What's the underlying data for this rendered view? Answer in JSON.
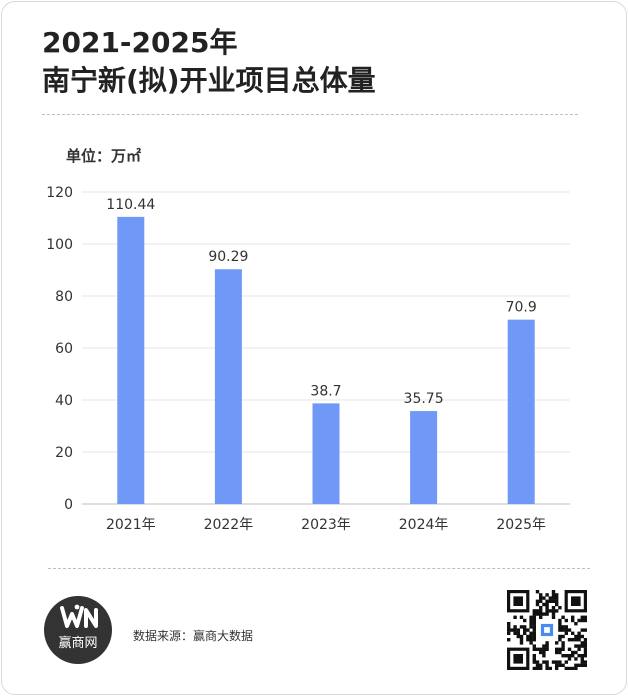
{
  "title": {
    "line1": "2021-2025年",
    "line2": "南宁新(拟)开业项目总体量"
  },
  "unit_label": "单位：万㎡",
  "chart_data": {
    "type": "bar",
    "categories": [
      "2021年",
      "2022年",
      "2023年",
      "2024年",
      "2025年"
    ],
    "series": [
      {
        "values": [
          110.44,
          90.29,
          38.7,
          35.75,
          70.9
        ]
      }
    ],
    "value_labels": [
      "110.44",
      "90.29",
      "38.7",
      "35.75",
      "70.9"
    ],
    "y_ticks": [
      "0",
      "20",
      "40",
      "60",
      "80",
      "100",
      "120"
    ],
    "ylim": [
      0,
      120
    ],
    "grid": true,
    "bar_color": "#6f98f7",
    "title": "2021-2025年 南宁新(拟)开业项目总体量",
    "ylabel": "单位：万㎡",
    "xlabel": ""
  },
  "footer": {
    "logo_text": "赢商网",
    "source": "数据来源：赢商大数据"
  },
  "colors": {
    "bar": "#6f98f7",
    "logo_bg": "#333333",
    "qr_accent": "#4a8af4"
  },
  "icons": {
    "logo": "winshang-logo-icon",
    "qr": "qr-code-icon"
  }
}
